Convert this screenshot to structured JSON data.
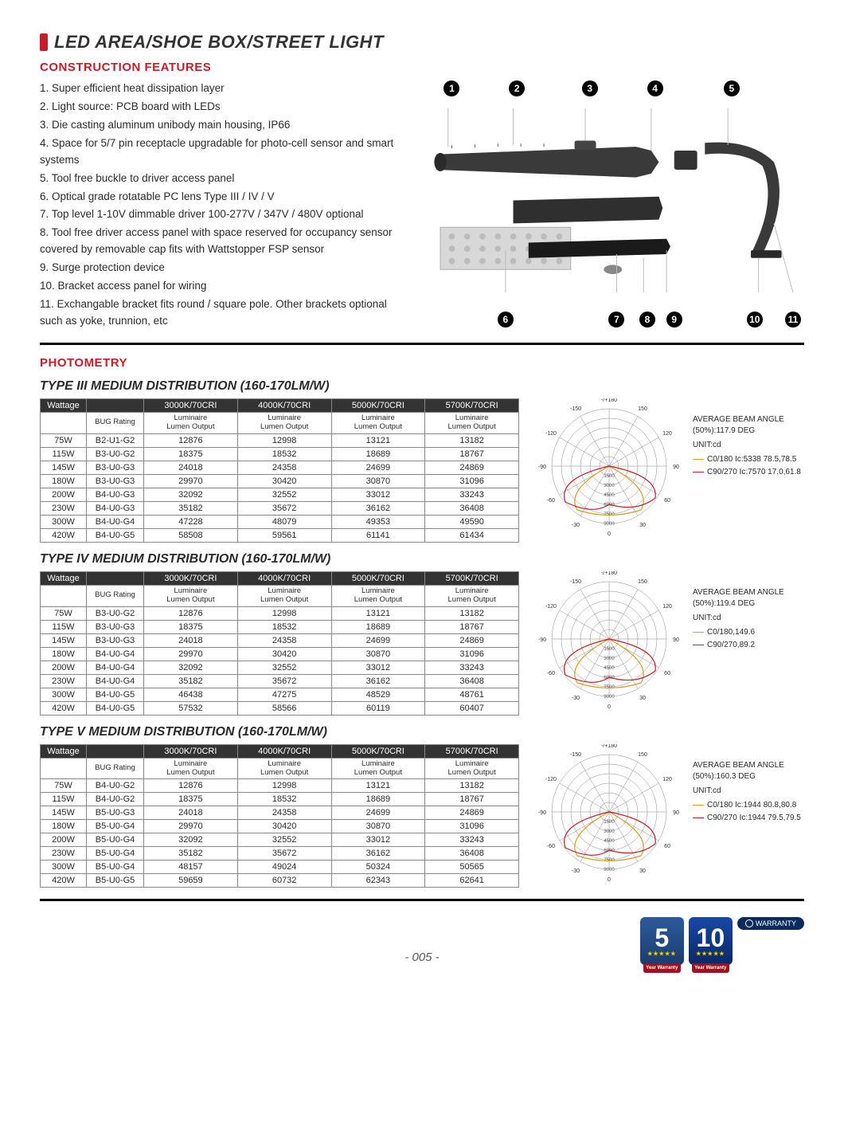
{
  "title": "LED AREA/SHOE BOX/STREET LIGHT",
  "construction_head": "CONSTRUCTION FEATURES",
  "features": [
    "1. Super efficient heat dissipation layer",
    "2. Light source: PCB board with LEDs",
    "3. Die casting aluminum unibody main housing, IP66",
    "4. Space for 5/7 pin receptacle upgradable for photo-cell sensor and smart systems",
    "5. Tool free buckle to driver access panel",
    "6. Optical grade rotatable PC lens Type III / IV / V",
    "7. Top level 1-10V dimmable driver 100-277V / 347V / 480V optional",
    "8. Tool free driver access panel with space reserved for occupancy sensor covered by removable cap fits with Wattstopper FSP sensor",
    "9. Surge protection device",
    "10. Bracket access panel for wiring",
    "11. Exchangable bracket fits round / square pole. Other brackets optional such as yoke, trunnion, etc"
  ],
  "callouts_top": [
    "1",
    "2",
    "3",
    "4",
    "5"
  ],
  "callouts_bot": [
    "6",
    "7",
    "8",
    "9",
    "10",
    "11"
  ],
  "photometry_head": "PHOTOMETRY",
  "col_headers": [
    "Wattage",
    "",
    "3000K/70CRI",
    "4000K/70CRI",
    "5000K/70CRI",
    "5700K/70CRI"
  ],
  "sub_headers": [
    "",
    "BUG Rating",
    "Luminaire Lumen Output",
    "Luminaire Lumen Output",
    "Luminaire Lumen Output",
    "Luminaire Lumen Output"
  ],
  "tables": [
    {
      "title": "TYPE III MEDIUM DISTRIBUTION (160-170LM/W)",
      "rows": [
        [
          "75W",
          "B2-U1-G2",
          "12876",
          "12998",
          "13121",
          "13182"
        ],
        [
          "115W",
          "B3-U0-G2",
          "18375",
          "18532",
          "18689",
          "18767"
        ],
        [
          "145W",
          "B3-U0-G3",
          "24018",
          "24358",
          "24699",
          "24869"
        ],
        [
          "180W",
          "B3-U0-G3",
          "29970",
          "30420",
          "30870",
          "31096"
        ],
        [
          "200W",
          "B4-U0-G3",
          "32092",
          "32552",
          "33012",
          "33243"
        ],
        [
          "230W",
          "B4-U0-G3",
          "35182",
          "35672",
          "36162",
          "36408"
        ],
        [
          "300W",
          "B4-U0-G4",
          "47228",
          "48079",
          "49353",
          "49590"
        ],
        [
          "420W",
          "B4-U0-G5",
          "58508",
          "59561",
          "61141",
          "61434"
        ]
      ],
      "polar": {
        "beam": "AVERAGE BEAM ANGLE (50%):117.9 DEG",
        "unit": "UNIT:cd",
        "l1": "C0/180 Ic:5338 78.5,78.5",
        "l2": "C90/270 Ic:7570 17.0,61.8",
        "c1": "#d4a020",
        "c2": "#c41e2a",
        "ticks": [
          "0",
          "1500",
          "3000",
          "4500",
          "6000",
          "7500",
          "9000"
        ]
      }
    },
    {
      "title": "TYPE IV MEDIUM DISTRIBUTION  (160-170LM/W)",
      "rows": [
        [
          "75W",
          "B3-U0-G2",
          "12876",
          "12998",
          "13121",
          "13182"
        ],
        [
          "115W",
          "B3-U0-G3",
          "18375",
          "18532",
          "18689",
          "18767"
        ],
        [
          "145W",
          "B3-U0-G3",
          "24018",
          "24358",
          "24699",
          "24869"
        ],
        [
          "180W",
          "B4-U0-G4",
          "29970",
          "30420",
          "30870",
          "31096"
        ],
        [
          "200W",
          "B4-U0-G4",
          "32092",
          "32552",
          "33012",
          "33243"
        ],
        [
          "230W",
          "B4-U0-G4",
          "35182",
          "35672",
          "36162",
          "36408"
        ],
        [
          "300W",
          "B4-U0-G5",
          "46438",
          "47275",
          "48529",
          "48761"
        ],
        [
          "420W",
          "B4-U0-G5",
          "57532",
          "58566",
          "60119",
          "60407"
        ]
      ],
      "polar": {
        "beam": "AVERAGE BEAM ANGLE (50%):119.4 DEG",
        "unit": "UNIT:cd",
        "l1": "C0/180,149.6",
        "l2": "C90/270,89.2",
        "c1": "#d4a020",
        "c2": "#c41e2a",
        "ticks": [
          "0",
          "1500",
          "3000",
          "4500",
          "6000",
          "7500",
          "9000"
        ]
      }
    },
    {
      "title": "TYPE V MEDIUM DISTRIBUTION  (160-170LM/W)",
      "rows": [
        [
          "75W",
          "B4-U0-G2",
          "12876",
          "12998",
          "13121",
          "13182"
        ],
        [
          "115W",
          "B4-U0-G2",
          "18375",
          "18532",
          "18689",
          "18767"
        ],
        [
          "145W",
          "B5-U0-G3",
          "24018",
          "24358",
          "24699",
          "24869"
        ],
        [
          "180W",
          "B5-U0-G4",
          "29970",
          "30420",
          "30870",
          "31096"
        ],
        [
          "200W",
          "B5-U0-G4",
          "32092",
          "32552",
          "33012",
          "33243"
        ],
        [
          "230W",
          "B5-U0-G4",
          "35182",
          "35672",
          "36162",
          "36408"
        ],
        [
          "300W",
          "B5-U0-G4",
          "48157",
          "49024",
          "50324",
          "50565"
        ],
        [
          "420W",
          "B5-U0-G5",
          "59659",
          "60732",
          "62343",
          "62641"
        ]
      ],
      "polar": {
        "beam": "AVERAGE BEAM ANGLE (50%):160.3 DEG",
        "unit": "UNIT:cd",
        "l1": "C0/180 Ic:1944 80.8,80.8",
        "l2": "C90/270 Ic:1944 79.5,79.5",
        "c1": "#d4a020",
        "c2": "#c41e2a",
        "ticks": [
          "0",
          "1500",
          "3000",
          "4500",
          "6000",
          "7500",
          "9000"
        ]
      }
    }
  ],
  "angle_labels": [
    "-/+180",
    "-150",
    "150",
    "-120",
    "120",
    "-90",
    "90",
    "-60",
    "60",
    "-30",
    "30",
    "0"
  ],
  "pagenum": "- 005 -",
  "warranty": {
    "b1": "5",
    "b2": "10",
    "label": "WARRANTY",
    "foot": "Year Warranty"
  },
  "colors": {
    "accent": "#c41e2a",
    "dark": "#333",
    "badge1a": "#1a3d6d",
    "badge1b": "#2d5a9e",
    "badge2a": "#0a2865",
    "badge2b": "#1748a8"
  }
}
